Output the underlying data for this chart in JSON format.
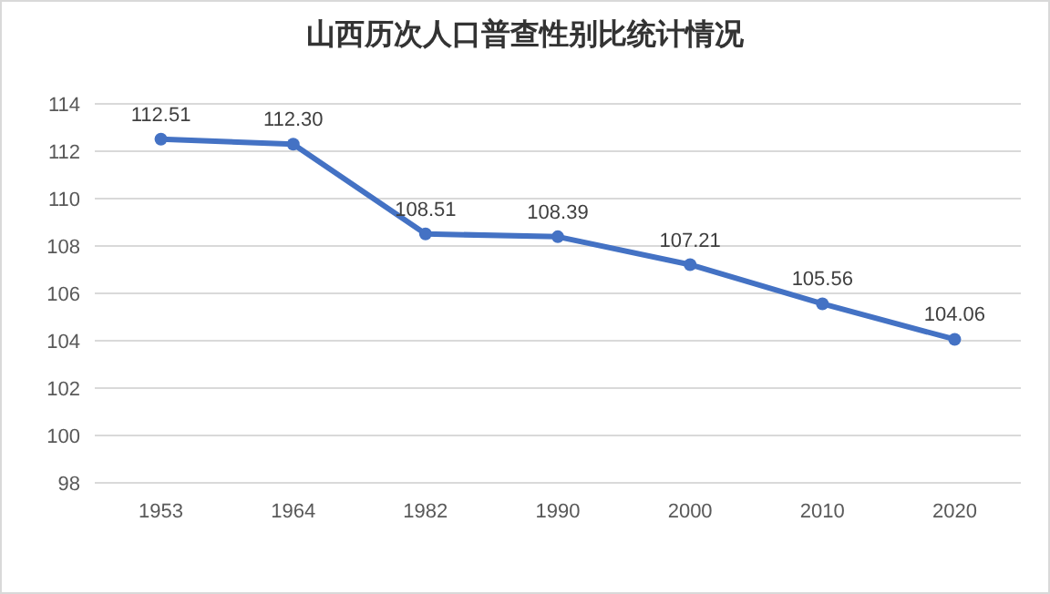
{
  "chart_data": {
    "type": "line",
    "title": "山西历次人口普查性别比统计情况",
    "categories": [
      "1953",
      "1964",
      "1982",
      "1990",
      "2000",
      "2010",
      "2020"
    ],
    "series": [
      {
        "color": "#4472c4",
        "values": [
          112.51,
          112.3,
          108.51,
          108.39,
          107.21,
          105.56,
          104.06
        ],
        "value_labels": [
          "112.51",
          "112.30",
          "108.51",
          "108.39",
          "107.21",
          "105.56",
          "104.06"
        ]
      }
    ],
    "ylim": [
      98,
      114
    ],
    "yticks": [
      98,
      100,
      102,
      104,
      106,
      108,
      110,
      112,
      114
    ],
    "grid": "y",
    "marker": "circle",
    "line_style": "solid"
  }
}
